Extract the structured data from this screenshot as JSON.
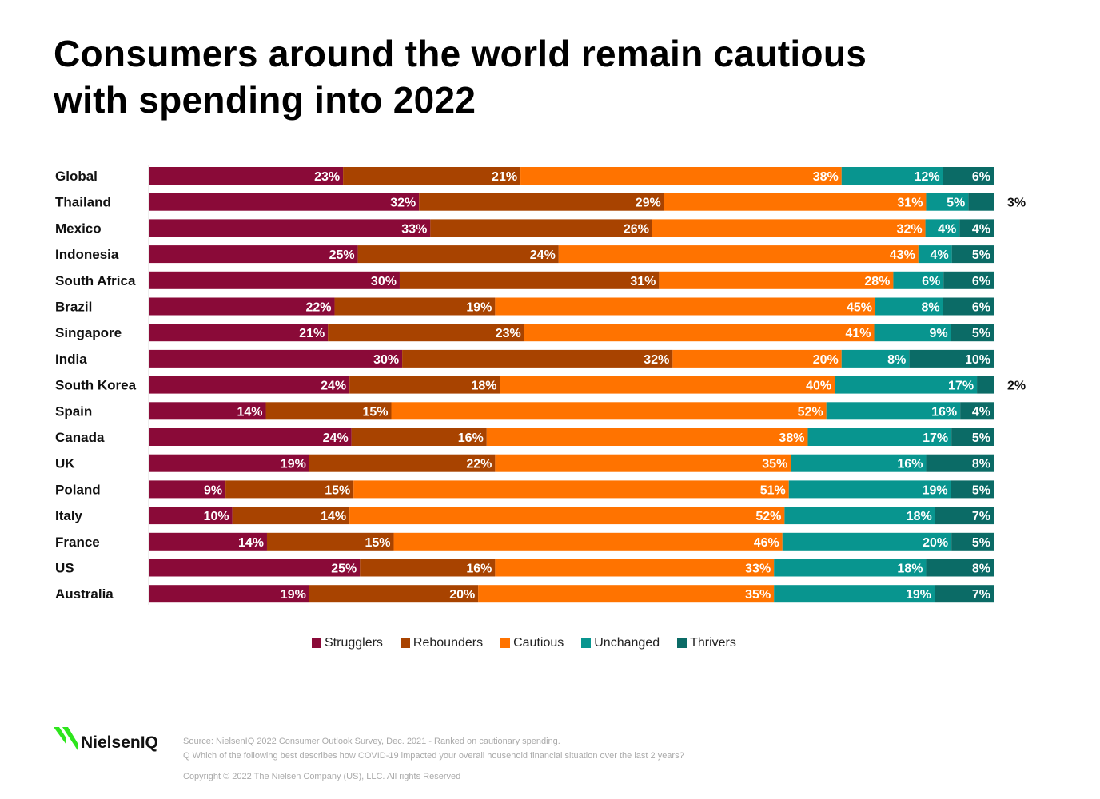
{
  "title_line1": "Consumers around the world remain cautious",
  "title_line2": "with spending into 2022",
  "chart_data": {
    "type": "bar",
    "orientation": "horizontal",
    "stacked": true,
    "percent": true,
    "title": "Consumers around the world remain cautious with spending into 2022",
    "categories": [
      "Global",
      "Thailand",
      "Mexico",
      "Indonesia",
      "South Africa",
      "Brazil",
      "Singapore",
      "India",
      "South Korea",
      "Spain",
      "Canada",
      "UK",
      "Poland",
      "Italy",
      "France",
      "US",
      "Australia"
    ],
    "series": [
      {
        "name": "Strugglers",
        "color": "#8a0a38",
        "values": [
          23,
          32,
          33,
          25,
          30,
          22,
          21,
          30,
          24,
          14,
          24,
          19,
          9,
          10,
          14,
          25,
          19
        ]
      },
      {
        "name": "Rebounders",
        "color": "#a84300",
        "values": [
          21,
          29,
          26,
          24,
          31,
          19,
          23,
          32,
          18,
          15,
          16,
          22,
          15,
          14,
          15,
          16,
          20
        ]
      },
      {
        "name": "Cautious",
        "color": "#ff7300",
        "values": [
          38,
          31,
          32,
          43,
          28,
          45,
          41,
          20,
          40,
          52,
          38,
          35,
          51,
          52,
          46,
          33,
          35
        ]
      },
      {
        "name": "Unchanged",
        "color": "#08958f",
        "values": [
          12,
          5,
          4,
          4,
          6,
          8,
          9,
          8,
          17,
          16,
          17,
          16,
          19,
          18,
          20,
          18,
          19
        ]
      },
      {
        "name": "Thrivers",
        "color": "#0b6b66",
        "values": [
          6,
          3,
          4,
          5,
          6,
          6,
          5,
          10,
          2,
          4,
          5,
          8,
          5,
          7,
          5,
          8,
          7
        ]
      }
    ],
    "legend_position": "bottom",
    "grid": false
  },
  "logo_text": "NielsenIQ",
  "footer": {
    "source": "Source: NielsenIQ 2022 Consumer Outlook Survey, Dec. 2021 - Ranked on cautionary spending.",
    "question": "Q Which of the following best describes how COVID-19 impacted your overall household financial situation over the last 2 years?",
    "copyright": "Copyright © 2022 The Nielsen Company (US), LLC. All rights Reserved"
  }
}
